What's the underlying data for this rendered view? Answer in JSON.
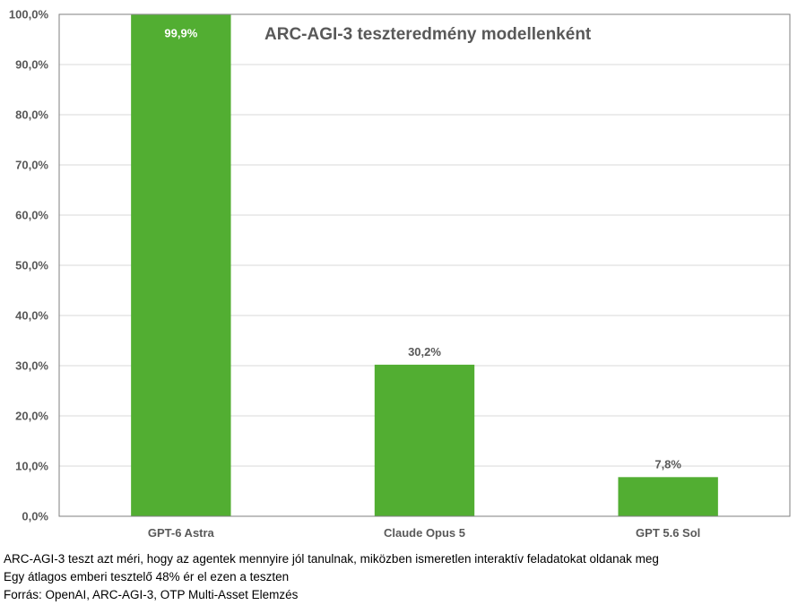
{
  "chart_data": {
    "type": "bar",
    "title": "ARC-AGI-3 teszteredmény modellenként",
    "categories": [
      "GPT-6 Astra",
      "Claude Opus 5",
      "GPT 5.6 Sol"
    ],
    "values": [
      99.9,
      30.2,
      7.8
    ],
    "data_labels": [
      "99,9%",
      "30,2%",
      "7,8%"
    ],
    "ylim": [
      0,
      100
    ],
    "y_ticks": [
      "0,0%",
      "10,0%",
      "20,0%",
      "30,0%",
      "40,0%",
      "50,0%",
      "60,0%",
      "70,0%",
      "80,0%",
      "90,0%",
      "100,0%"
    ],
    "grid": true,
    "bar_color": "#52AE32",
    "grid_color": "#D9D9D9",
    "text_color": "#595959",
    "data_label_colors": [
      "#FFFFFF",
      "#595959",
      "#595959"
    ]
  },
  "notes": [
    "ARC-AGI-3 teszt azt méri, hogy az agentek mennyire jól tanulnak, miközben ismeretlen interaktív feladatokat oldanak meg",
    "Egy átlagos emberi tesztelő 48% ér el ezen a teszten",
    "Forrás: OpenAI, ARC-AGI-3, OTP Multi-Asset Elemzés"
  ]
}
